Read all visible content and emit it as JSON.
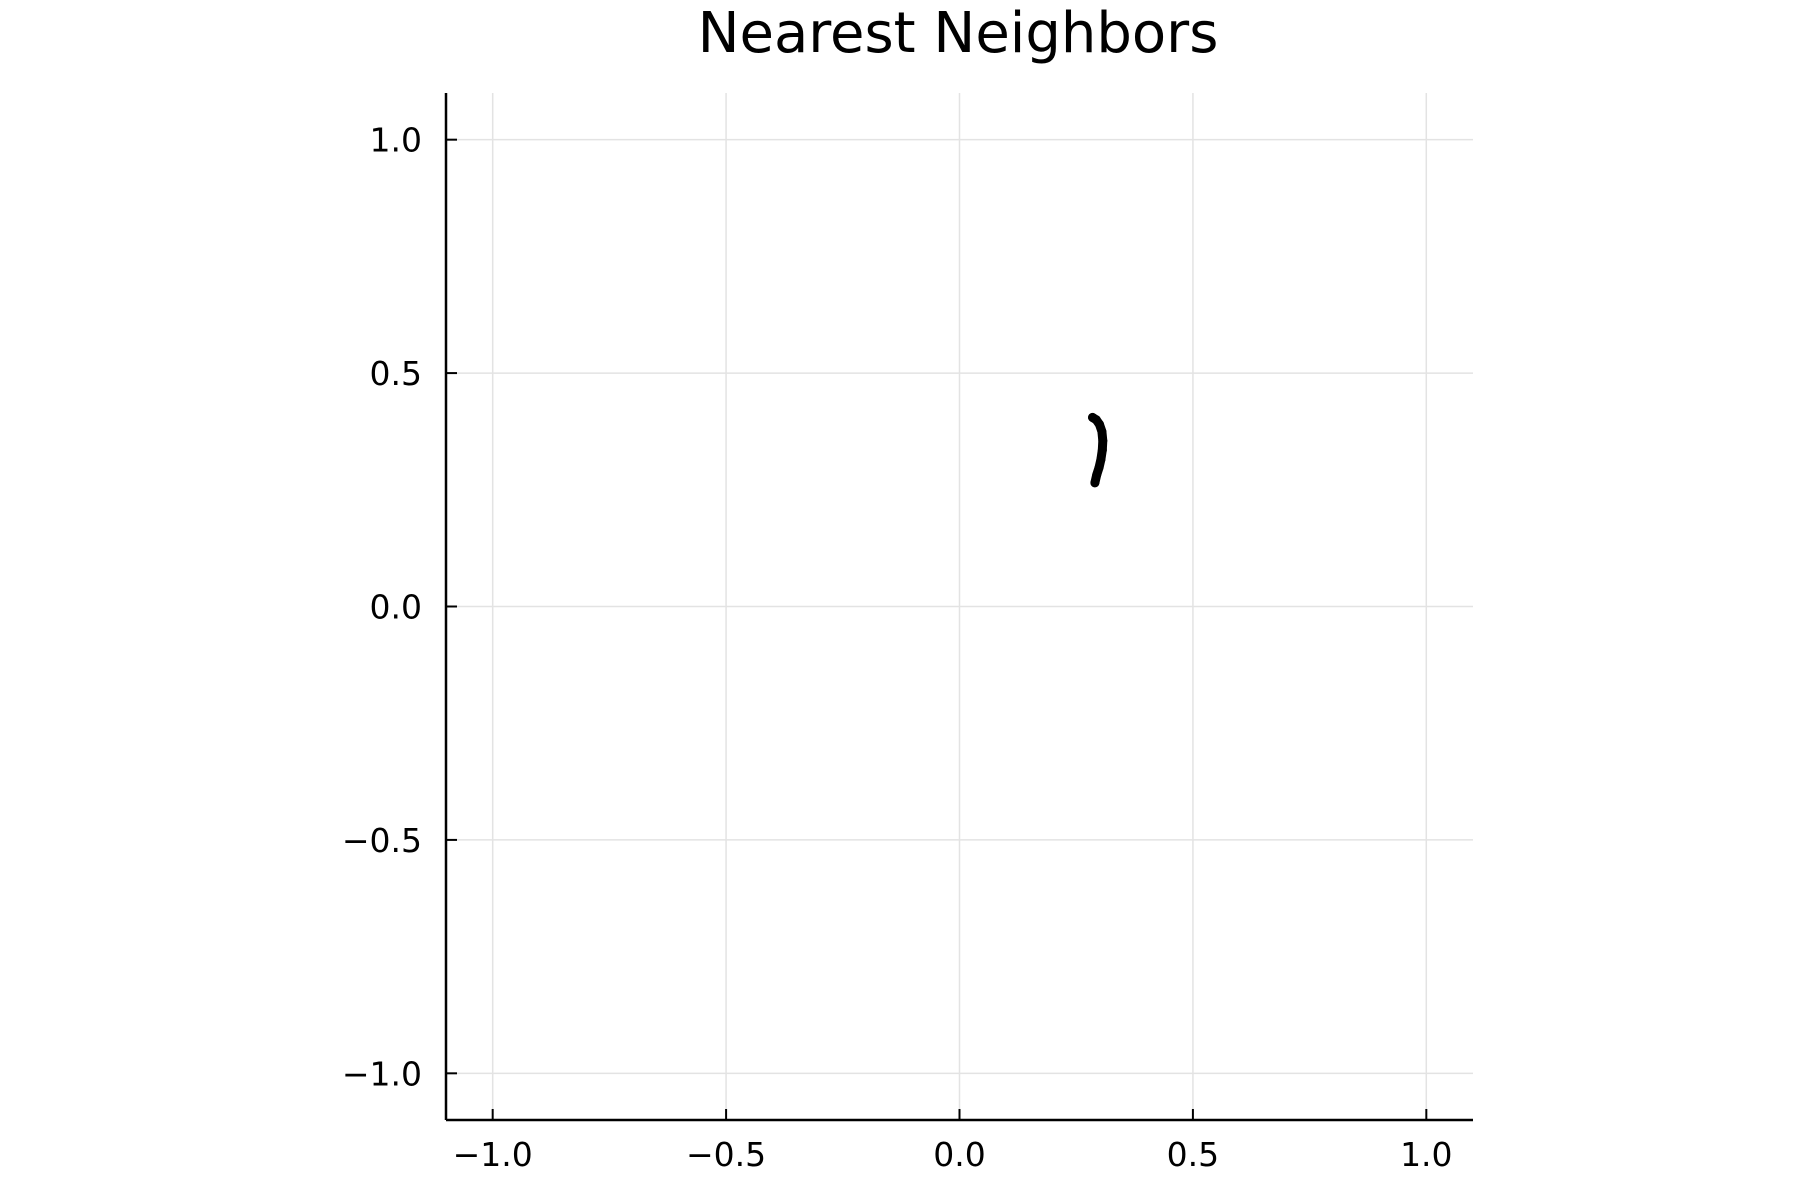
{
  "chart_data": {
    "type": "line",
    "title": "Nearest Neighbors",
    "xlabel": "",
    "ylabel": "",
    "xlim": [
      -1.1,
      1.1
    ],
    "ylim": [
      -1.1,
      1.1
    ],
    "xticks": [
      -1.0,
      -0.5,
      0.0,
      0.5,
      1.0
    ],
    "yticks": [
      -1.0,
      -0.5,
      0.0,
      0.5,
      1.0
    ],
    "xtick_labels": [
      "−1.0",
      "−0.5",
      "0.0",
      "0.5",
      "1.0"
    ],
    "ytick_labels": [
      "−1.0",
      "−0.5",
      "0.0",
      "0.5",
      "1.0"
    ],
    "grid": true,
    "legend": "none",
    "series": [
      {
        "color": "#000000",
        "x": [
          0.285,
          0.293,
          0.3,
          0.305,
          0.307,
          0.306,
          0.303,
          0.299,
          0.294,
          0.29
        ],
        "y": [
          0.405,
          0.4,
          0.39,
          0.375,
          0.355,
          0.335,
          0.315,
          0.298,
          0.282,
          0.265
        ]
      }
    ]
  }
}
